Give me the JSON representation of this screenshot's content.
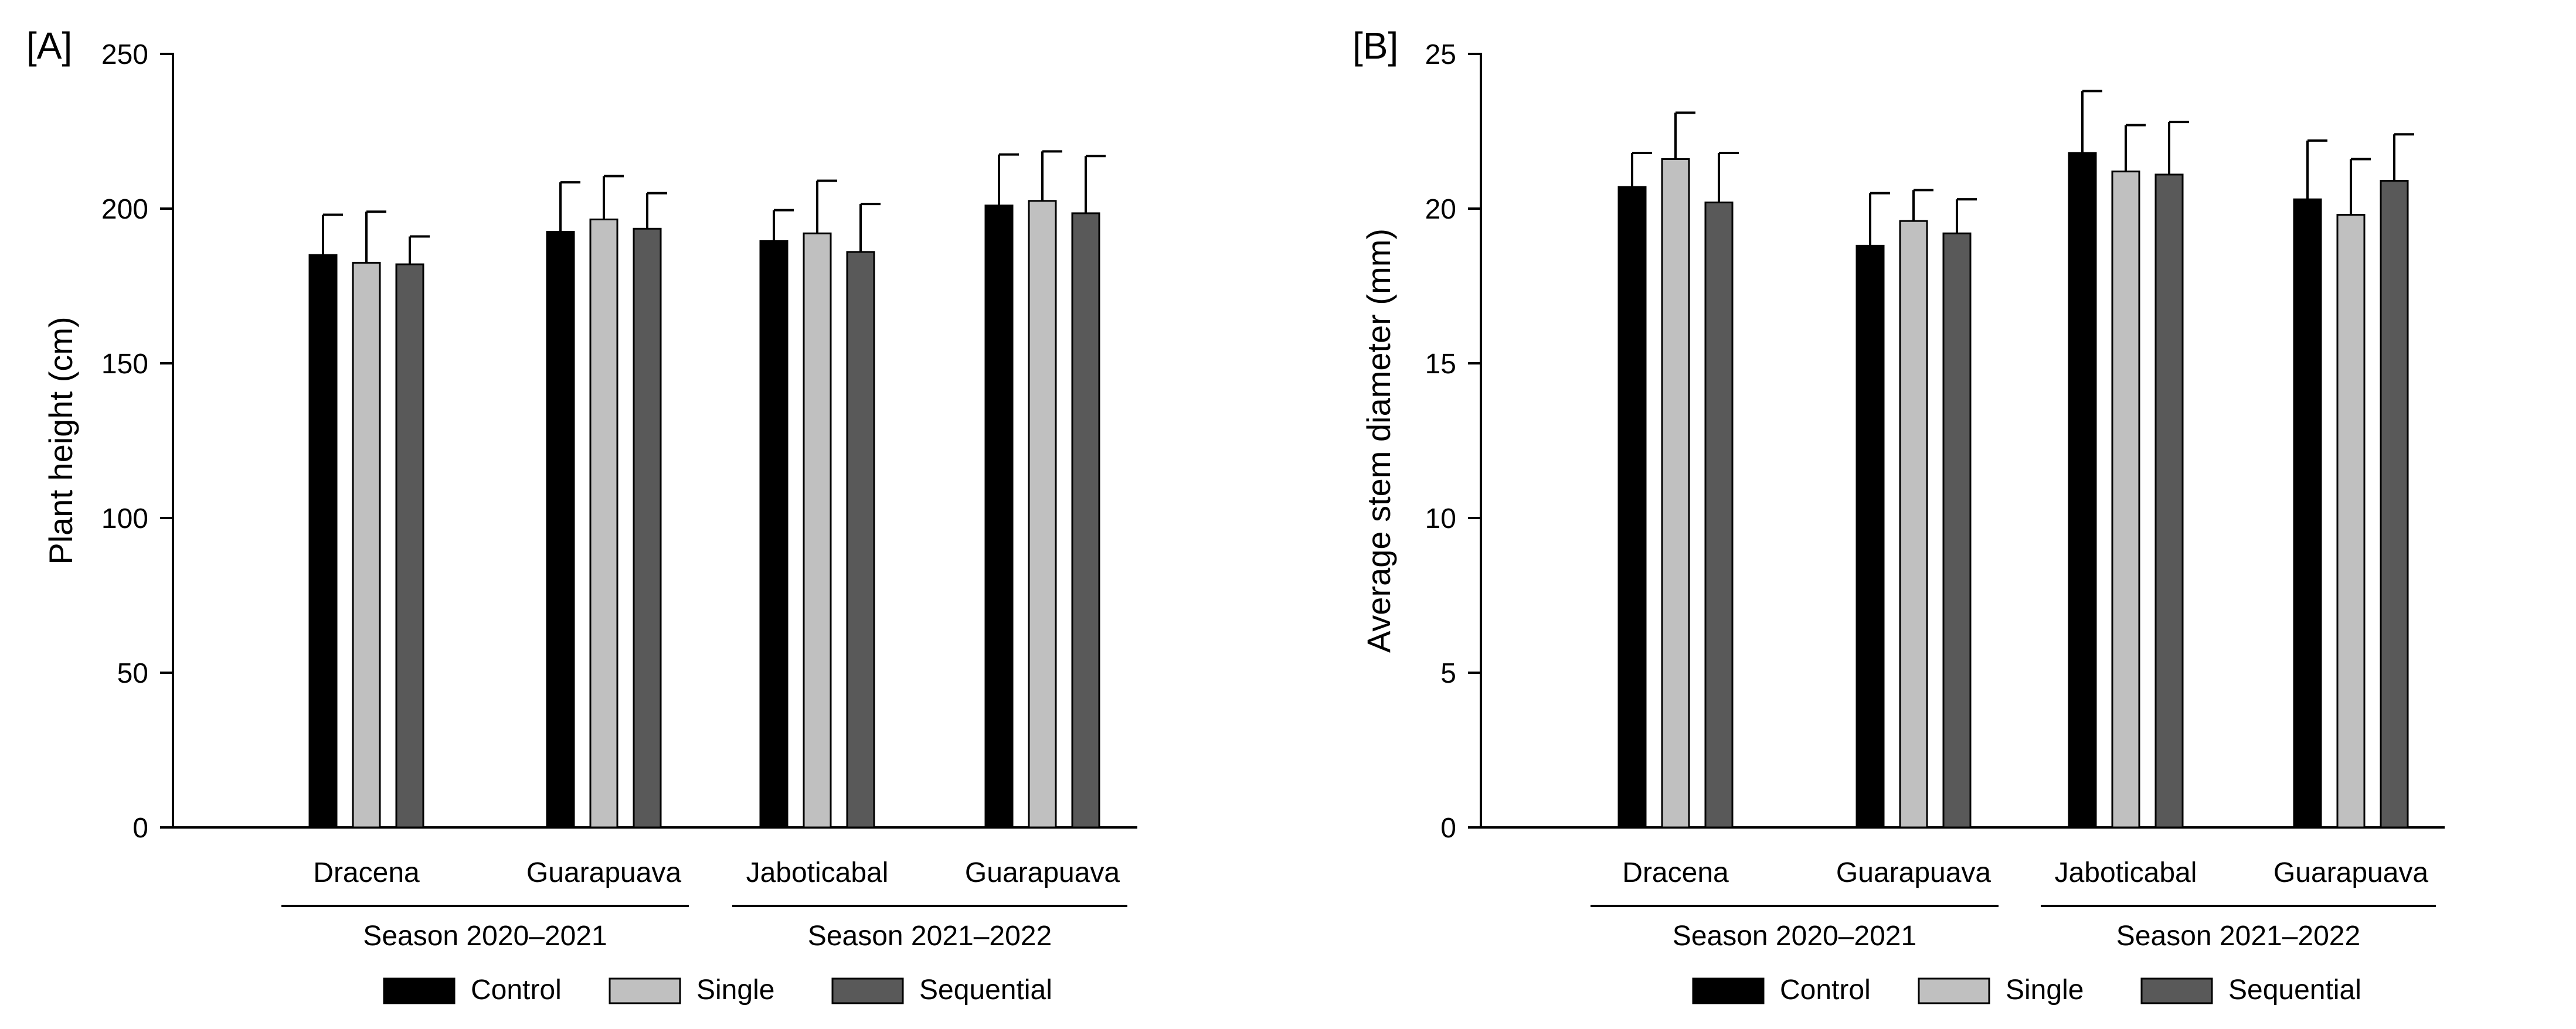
{
  "chart_data": [
    {
      "type": "bar",
      "panel_label": "[A]",
      "ylabel": "Plant height (cm)",
      "ylim": [
        0,
        250
      ],
      "yticks": [
        0,
        50,
        100,
        150,
        200,
        250
      ],
      "categories": [
        "Dracena",
        "Guarapuava",
        "Jaboticabal",
        "Guarapuava"
      ],
      "season_groups": [
        {
          "label": "Season 2020–2021",
          "categories": [
            0,
            1
          ]
        },
        {
          "label": "Season 2021–2022",
          "categories": [
            2,
            3
          ]
        }
      ],
      "series": [
        {
          "name": "Control",
          "color": "#000000",
          "values": [
            185,
            192.5,
            189.5,
            201
          ],
          "errors": [
            13,
            16,
            10,
            16.5
          ]
        },
        {
          "name": "Single",
          "color": "#c0c0c0",
          "values": [
            182.5,
            196.5,
            192,
            202.5
          ],
          "errors": [
            16.5,
            14,
            17,
            16
          ]
        },
        {
          "name": "Sequential",
          "color": "#595959",
          "values": [
            182,
            193.5,
            186,
            198.5
          ],
          "errors": [
            9,
            11.5,
            15.5,
            18.5
          ]
        }
      ]
    },
    {
      "type": "bar",
      "panel_label": "[B]",
      "ylabel": "Average stem diameter (mm)",
      "ylim": [
        0,
        25
      ],
      "yticks": [
        0,
        5,
        10,
        15,
        20,
        25
      ],
      "categories": [
        "Dracena",
        "Guarapuava",
        "Jaboticabal",
        "Guarapuava"
      ],
      "season_groups": [
        {
          "label": "Season 2020–2021",
          "categories": [
            0,
            1
          ]
        },
        {
          "label": "Season 2021–2022",
          "categories": [
            2,
            3
          ]
        }
      ],
      "series": [
        {
          "name": "Control",
          "color": "#000000",
          "values": [
            20.7,
            18.8,
            21.8,
            20.3
          ],
          "errors": [
            1.1,
            1.7,
            2,
            1.9
          ]
        },
        {
          "name": "Single",
          "color": "#c0c0c0",
          "values": [
            21.6,
            19.6,
            21.2,
            19.8
          ],
          "errors": [
            1.5,
            1,
            1.5,
            1.8
          ]
        },
        {
          "name": "Sequential",
          "color": "#595959",
          "values": [
            20.2,
            19.2,
            21.1,
            20.9
          ],
          "errors": [
            1.6,
            1.1,
            1.7,
            1.5
          ]
        }
      ]
    }
  ]
}
